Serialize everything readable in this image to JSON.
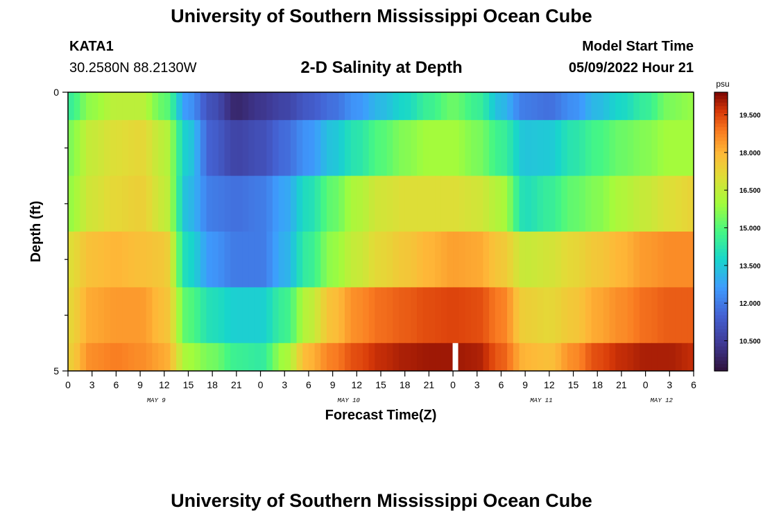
{
  "header": {
    "title": "University of Southern Mississippi Ocean Cube",
    "station_id": "KATA1",
    "coords": "30.2580N  88.2130W",
    "subtitle": "2-D Salinity at Depth",
    "model_label": "Model Start Time",
    "model_time": "05/09/2022 Hour 21"
  },
  "footer": {
    "title": "University of Southern Mississippi Ocean Cube"
  },
  "chart_data": {
    "type": "heatmap",
    "title": "2-D Salinity at Depth",
    "xlabel": "Forecast Time(Z)",
    "ylabel": "Depth (ft)",
    "x_range_hours": [
      0,
      78
    ],
    "x_ticks": [
      0,
      3,
      6,
      9,
      12,
      15,
      18,
      21,
      24,
      27,
      30,
      33,
      36,
      39,
      42,
      45,
      48,
      51,
      54,
      57,
      60,
      63,
      66,
      69,
      72,
      75,
      78
    ],
    "x_tick_labels": [
      "0",
      "3",
      "6",
      "9",
      "12",
      "15",
      "18",
      "21",
      "0",
      "3",
      "6",
      "9",
      "12",
      "15",
      "18",
      "21",
      "0",
      "3",
      "6",
      "9",
      "12",
      "15",
      "18",
      "21",
      "0",
      "3",
      "6"
    ],
    "date_labels": [
      {
        "label": "MAY 9",
        "hour": 11
      },
      {
        "label": "MAY 10",
        "hour": 35
      },
      {
        "label": "MAY 11",
        "hour": 59
      },
      {
        "label": "MAY 12",
        "hour": 74
      }
    ],
    "y_range_ft": [
      0,
      5
    ],
    "y_tick_labels": [
      "0",
      "5"
    ],
    "colorbar": {
      "units": "psu",
      "min": 9.3,
      "max": 20.4,
      "ticks": [
        "10.500",
        "12.000",
        "13.500",
        "15.000",
        "16.500",
        "18.000",
        "19.500"
      ],
      "tick_values": [
        10.5,
        12.0,
        13.5,
        15.0,
        16.5,
        18.0,
        19.5
      ]
    },
    "missing_hour": 48.3,
    "layers": [
      {
        "depth_top": 0.0,
        "depth_bottom": 0.5,
        "anchors_hour": [
          0,
          3,
          6,
          9,
          12,
          15,
          18,
          21,
          24,
          27,
          30,
          33,
          36,
          39,
          42,
          45,
          48,
          51,
          54,
          57,
          60,
          63,
          66,
          69,
          72,
          75,
          78
        ],
        "anchors_psu": [
          14.5,
          15.8,
          16.4,
          16.4,
          15.2,
          12.5,
          11.0,
          9.9,
          10.3,
          10.7,
          11.3,
          11.8,
          12.5,
          13.2,
          13.8,
          14.6,
          15.3,
          14.6,
          13.2,
          12.0,
          11.8,
          12.4,
          13.2,
          13.8,
          14.5,
          15.5,
          15.8
        ]
      },
      {
        "depth_top": 0.5,
        "depth_bottom": 1.5,
        "anchors_hour": [
          0,
          3,
          6,
          9,
          12,
          15,
          18,
          21,
          24,
          27,
          30,
          33,
          36,
          39,
          42,
          45,
          48,
          51,
          54,
          57,
          60,
          63,
          66,
          69,
          72,
          75,
          78
        ],
        "anchors_psu": [
          15.5,
          16.6,
          17.0,
          17.2,
          16.4,
          13.5,
          11.4,
          10.7,
          11.0,
          11.7,
          12.5,
          13.4,
          14.2,
          15.0,
          15.6,
          16.0,
          16.0,
          15.5,
          14.6,
          13.4,
          13.5,
          14.2,
          14.8,
          15.3,
          15.6,
          16.0,
          16.0
        ]
      },
      {
        "depth_top": 1.5,
        "depth_bottom": 2.5,
        "anchors_hour": [
          0,
          3,
          6,
          9,
          12,
          15,
          18,
          21,
          24,
          27,
          30,
          33,
          36,
          39,
          42,
          45,
          48,
          51,
          54,
          57,
          60,
          63,
          66,
          69,
          72,
          75,
          78
        ],
        "anchors_psu": [
          15.8,
          16.8,
          17.2,
          17.4,
          16.6,
          13.2,
          12.0,
          11.8,
          12.0,
          12.8,
          14.0,
          15.2,
          16.2,
          16.8,
          17.0,
          17.0,
          17.0,
          16.8,
          16.2,
          14.0,
          14.5,
          15.2,
          15.6,
          16.2,
          16.6,
          17.0,
          17.3
        ]
      },
      {
        "depth_top": 2.5,
        "depth_bottom": 3.5,
        "anchors_hour": [
          0,
          3,
          6,
          9,
          12,
          15,
          18,
          21,
          24,
          27,
          30,
          33,
          36,
          39,
          42,
          45,
          48,
          51,
          54,
          57,
          60,
          63,
          66,
          69,
          72,
          75,
          78
        ],
        "anchors_psu": [
          17.0,
          17.8,
          18.0,
          17.8,
          17.6,
          13.8,
          12.5,
          12.0,
          12.0,
          13.0,
          14.5,
          15.8,
          16.6,
          17.2,
          17.6,
          18.0,
          18.3,
          18.2,
          17.6,
          16.6,
          16.8,
          17.2,
          17.6,
          18.0,
          18.4,
          18.6,
          18.6
        ]
      },
      {
        "depth_top": 3.5,
        "depth_bottom": 4.5,
        "anchors_hour": [
          0,
          3,
          6,
          9,
          12,
          15,
          18,
          21,
          24,
          27,
          30,
          33,
          36,
          39,
          42,
          45,
          48,
          51,
          54,
          57,
          60,
          63,
          66,
          69,
          72,
          75,
          78
        ],
        "anchors_psu": [
          17.2,
          18.2,
          18.4,
          18.4,
          17.8,
          15.0,
          14.0,
          13.6,
          13.6,
          14.6,
          16.4,
          17.8,
          18.6,
          19.0,
          19.2,
          19.4,
          19.5,
          19.4,
          18.8,
          17.4,
          17.2,
          17.6,
          18.2,
          18.6,
          19.0,
          19.2,
          19.2
        ]
      },
      {
        "depth_top": 4.5,
        "depth_bottom": 5.0,
        "anchors_hour": [
          0,
          3,
          6,
          9,
          12,
          15,
          18,
          21,
          24,
          27,
          30,
          33,
          36,
          39,
          42,
          45,
          48,
          51,
          54,
          57,
          60,
          63,
          66,
          69,
          72,
          75,
          78
        ],
        "anchors_psu": [
          17.4,
          18.6,
          18.8,
          18.6,
          18.2,
          16.0,
          15.4,
          14.6,
          14.4,
          16.0,
          18.0,
          18.8,
          19.4,
          19.8,
          20.0,
          20.1,
          20.1,
          20.0,
          19.2,
          18.0,
          17.8,
          18.6,
          19.4,
          19.8,
          20.0,
          20.0,
          19.8
        ]
      }
    ]
  }
}
